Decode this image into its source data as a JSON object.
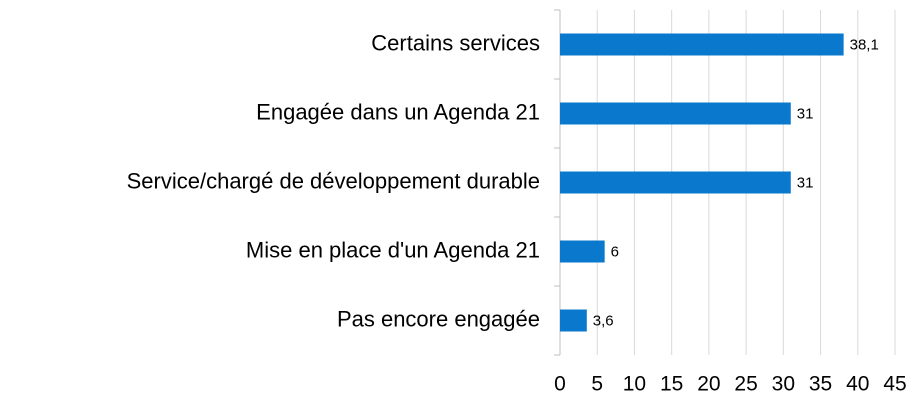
{
  "chart_data": {
    "type": "bar",
    "orientation": "horizontal",
    "categories": [
      "Certains services",
      "Engagée dans un Agenda 21",
      "Service/chargé de développement durable",
      "Mise en place d'un Agenda 21",
      "Pas encore engagée"
    ],
    "values": [
      38.1,
      31,
      31,
      6,
      3.6
    ],
    "value_labels": [
      "38,1",
      "31",
      "31",
      "6",
      "3,6"
    ],
    "color": "#0a78cc",
    "xlim": [
      0,
      45
    ],
    "xticks": [
      0,
      5,
      10,
      15,
      20,
      25,
      30,
      35,
      40,
      45
    ],
    "grid": true
  }
}
